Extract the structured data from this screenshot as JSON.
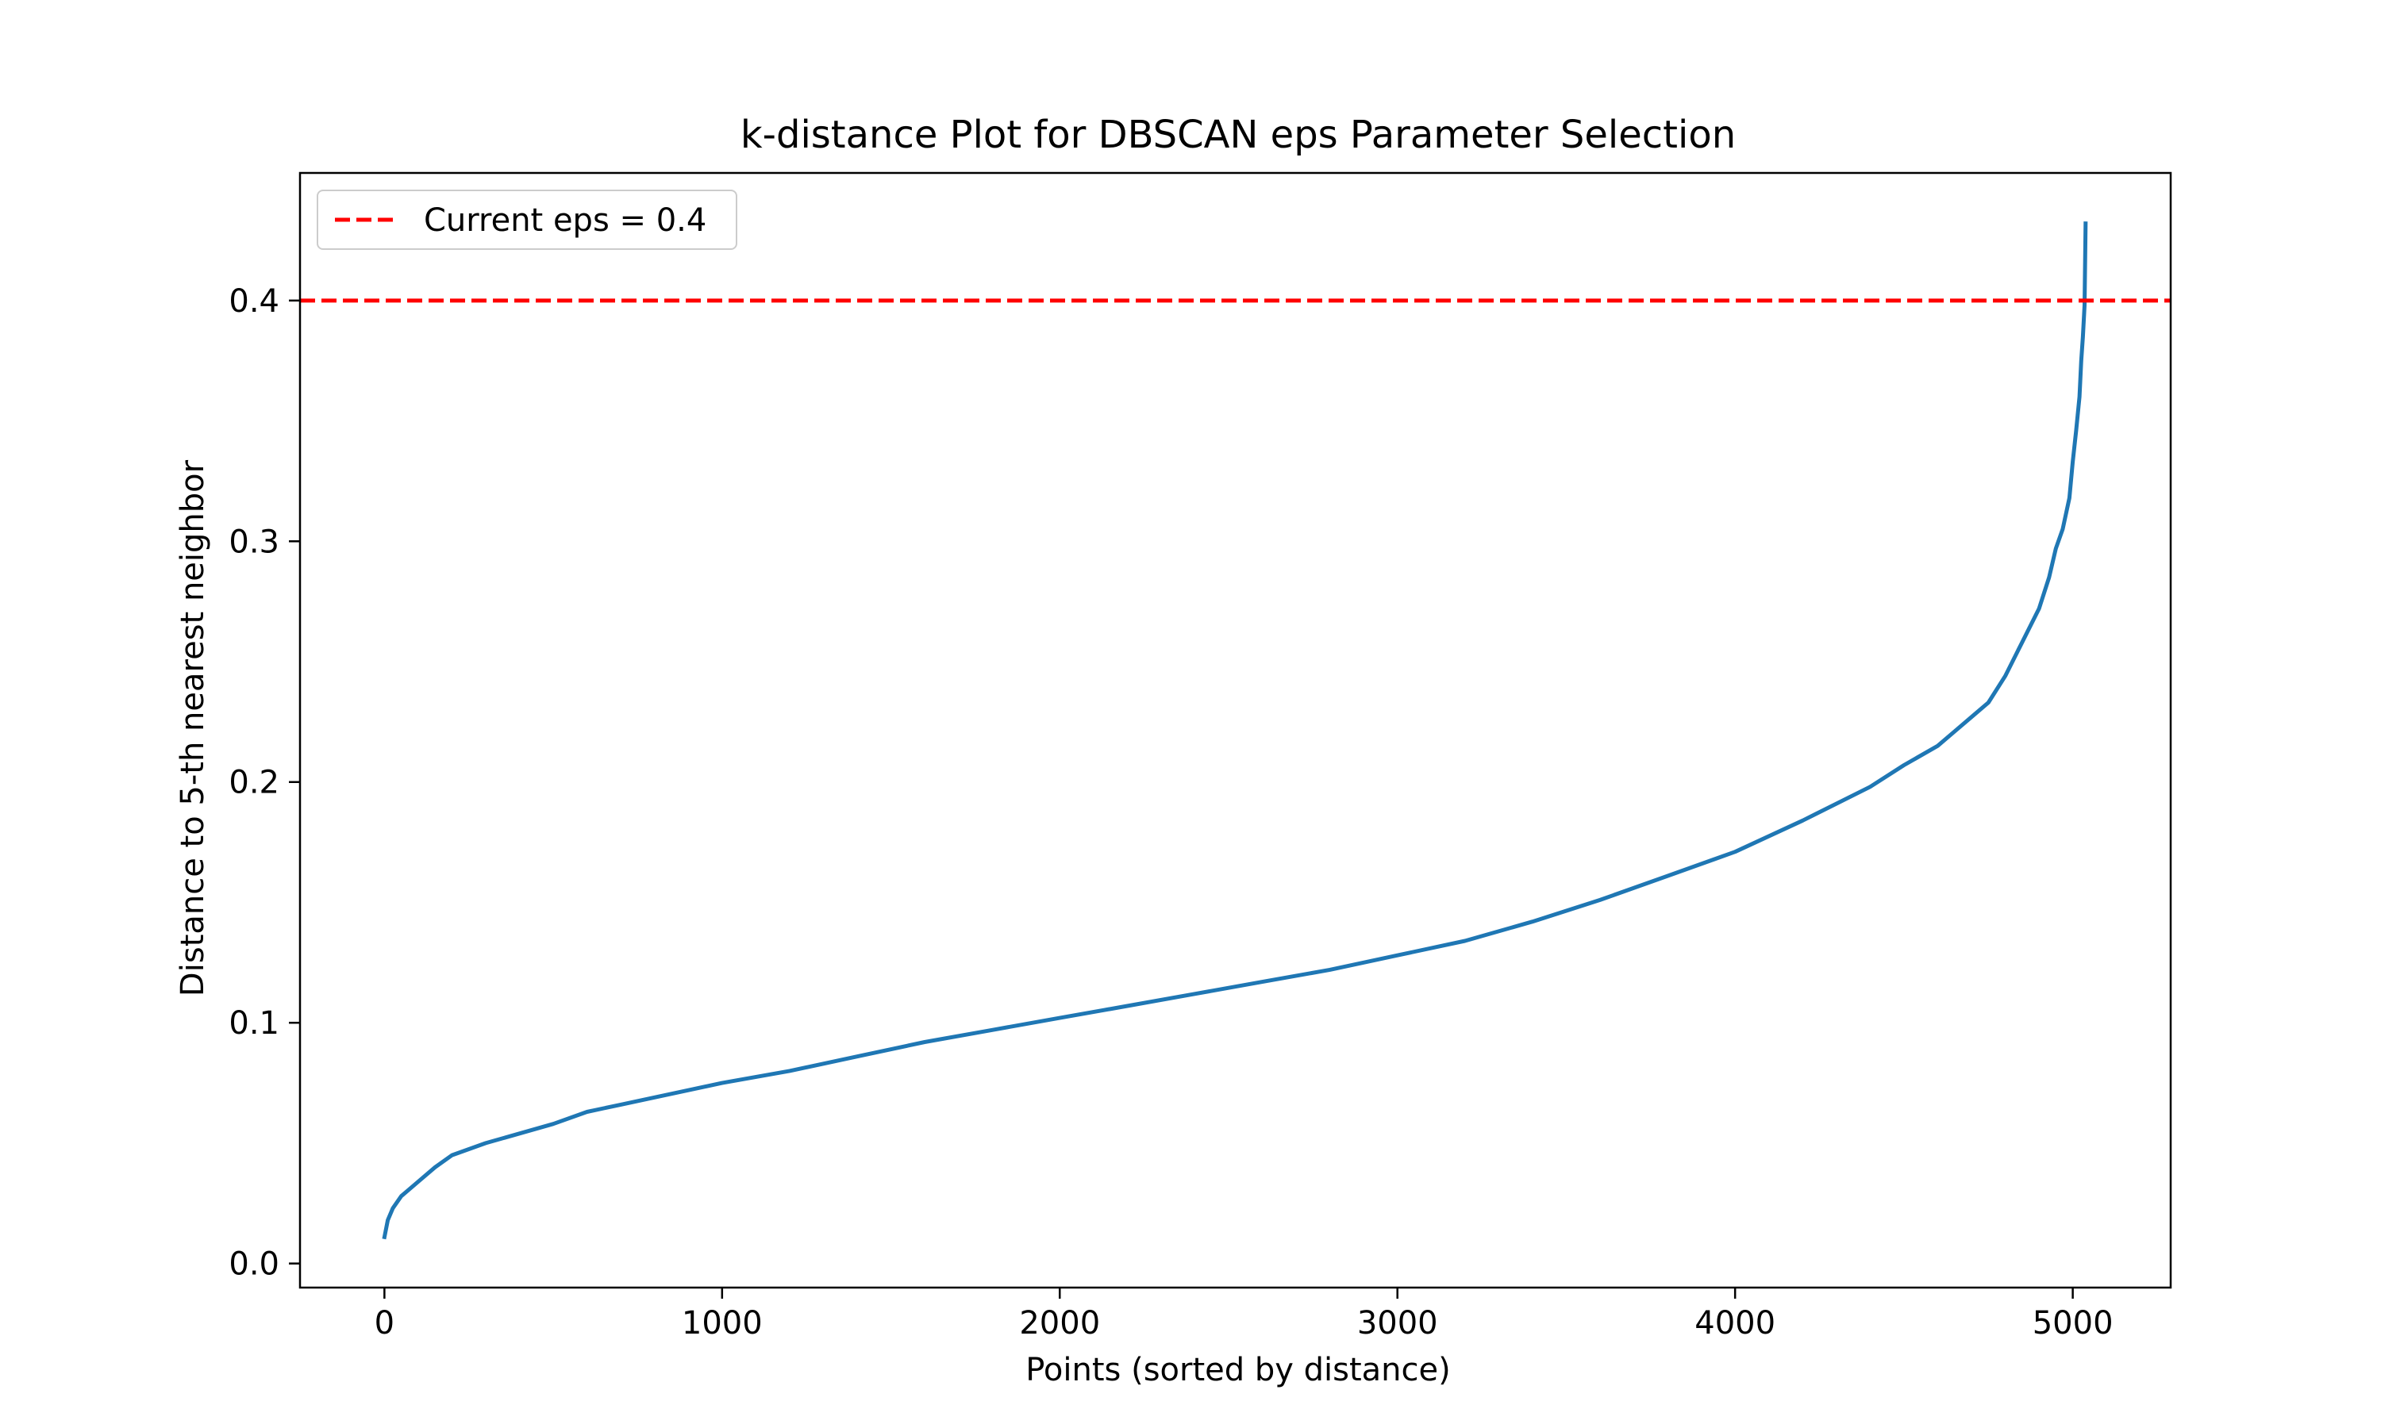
{
  "chart_data": {
    "type": "line",
    "title": "k-distance Plot for DBSCAN eps Parameter Selection",
    "xlabel": "Points (sorted by distance)",
    "ylabel": "Distance to 5-th nearest neighbor",
    "xlim": [
      -250,
      5290
    ],
    "ylim": [
      -0.01,
      0.453
    ],
    "xticks": [
      0,
      1000,
      2000,
      3000,
      4000,
      5000
    ],
    "xtick_labels": [
      "0",
      "1000",
      "2000",
      "3000",
      "4000",
      "5000"
    ],
    "yticks": [
      0.0,
      0.1,
      0.2,
      0.3,
      0.4
    ],
    "ytick_labels": [
      "0.0",
      "0.1",
      "0.2",
      "0.3",
      "0.4"
    ],
    "grid": false,
    "legend_position": "top-left",
    "series": [
      {
        "color": "#1f77b4",
        "x": [
          0,
          10,
          25,
          50,
          100,
          150,
          200,
          300,
          400,
          500,
          600,
          700,
          800,
          900,
          1000,
          1200,
          1400,
          1600,
          1800,
          2000,
          2200,
          2400,
          2600,
          2800,
          3000,
          3200,
          3400,
          3600,
          3800,
          4000,
          4200,
          4400,
          4500,
          4600,
          4650,
          4700,
          4750,
          4800,
          4850,
          4900,
          4930,
          4950,
          4970,
          4990,
          5000,
          5010,
          5020,
          5025,
          5030,
          5035,
          5038
        ],
        "y": [
          0.011,
          0.018,
          0.023,
          0.028,
          0.034,
          0.04,
          0.045,
          0.05,
          0.054,
          0.058,
          0.063,
          0.066,
          0.069,
          0.072,
          0.075,
          0.08,
          0.086,
          0.092,
          0.097,
          0.102,
          0.107,
          0.112,
          0.117,
          0.122,
          0.128,
          0.134,
          0.142,
          0.151,
          0.161,
          0.171,
          0.184,
          0.198,
          0.207,
          0.215,
          0.221,
          0.227,
          0.233,
          0.244,
          0.258,
          0.272,
          0.285,
          0.297,
          0.305,
          0.318,
          0.333,
          0.346,
          0.36,
          0.375,
          0.385,
          0.398,
          0.432
        ]
      },
      {
        "name": "Current eps = 0.4",
        "color": "#ff0000",
        "style": "dashed",
        "y_constant": 0.4
      }
    ]
  }
}
